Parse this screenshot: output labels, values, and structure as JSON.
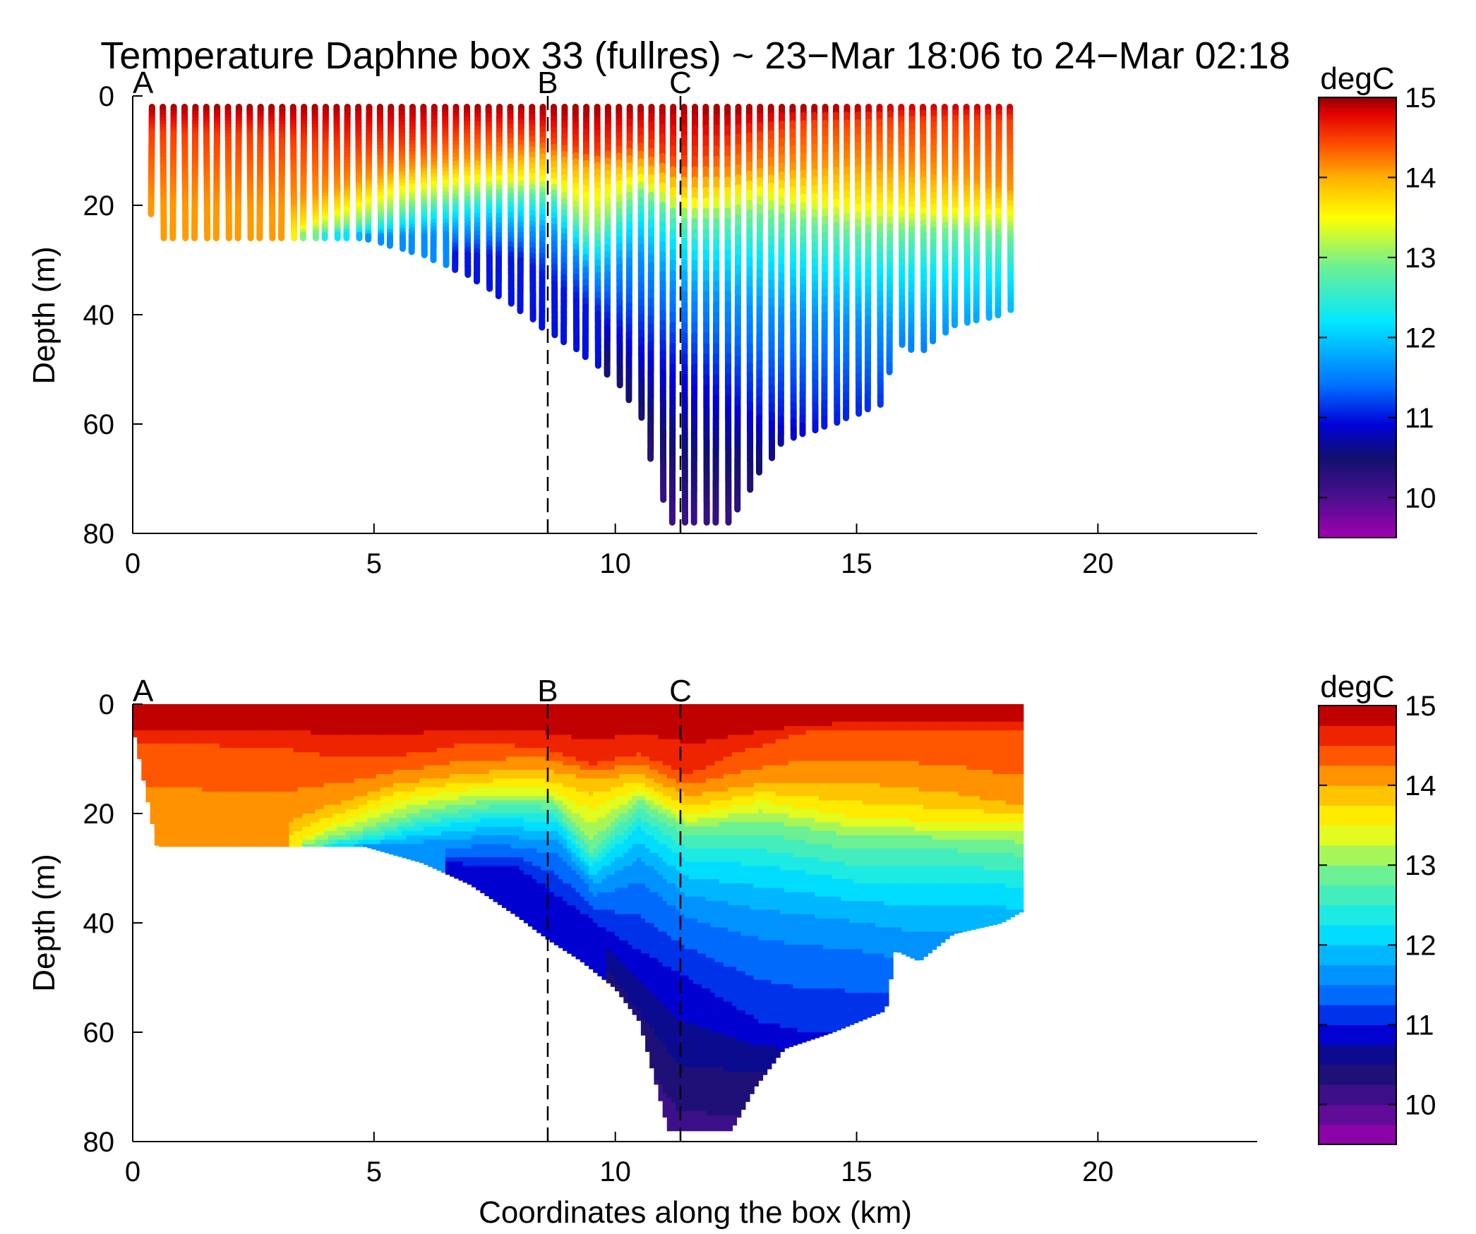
{
  "chart_data": {
    "type": "heatmap",
    "title": "Temperature Daphne box 33 (fullres) ~ 23−Mar 18:06 to 24−Mar 02:18",
    "xlabel": "Coordinates along the box (km)",
    "ylabel": "Depth (m)",
    "colorbar_label": "degC",
    "colormap": [
      "#a000b0",
      "#4a1090",
      "#10106e",
      "#0000d8",
      "#0070ff",
      "#00e8ff",
      "#70f090",
      "#ffff00",
      "#ffb000",
      "#ff5000",
      "#e00000",
      "#8c0000"
    ],
    "colorbar_values": [
      9.5,
      10.0,
      10.5,
      10.9,
      11.4,
      12.2,
      12.9,
      13.5,
      14.0,
      14.4,
      14.8,
      15.0
    ],
    "xlim": [
      0,
      23.3
    ],
    "ylim": [
      80,
      0
    ],
    "xticks": [
      "0",
      "5",
      "10",
      "15",
      "20"
    ],
    "yticks": [
      "0",
      "20",
      "40",
      "60",
      "80"
    ],
    "clim": [
      9.5,
      15
    ],
    "cticks": [
      "10",
      "11",
      "12",
      "13",
      "14",
      "15"
    ],
    "grid": false,
    "stations": [
      {
        "name": "A",
        "x": 0.0,
        "line": false
      },
      {
        "name": "B",
        "x": 8.6,
        "line": true
      },
      {
        "name": "C",
        "x": 11.35,
        "line": true
      }
    ],
    "panels": [
      {
        "name": "scatter_profiles",
        "style": "yo-yo profiles"
      },
      {
        "name": "contour_section",
        "style": "filled contours"
      }
    ],
    "bottom_depth": [
      [
        0.0,
        4
      ],
      [
        0.5,
        26
      ],
      [
        4.8,
        26
      ],
      [
        6.0,
        29
      ],
      [
        7.0,
        33
      ],
      [
        8.0,
        39
      ],
      [
        8.6,
        43
      ],
      [
        9.3,
        47
      ],
      [
        10.0,
        52
      ],
      [
        10.5,
        58
      ],
      [
        11.1,
        78
      ],
      [
        11.6,
        78
      ],
      [
        12.4,
        78
      ],
      [
        12.9,
        70
      ],
      [
        13.5,
        63
      ],
      [
        14.5,
        60
      ],
      [
        15.6,
        56
      ],
      [
        15.8,
        45
      ],
      [
        16.3,
        47
      ],
      [
        17.0,
        42
      ],
      [
        18.0,
        40
      ],
      [
        18.4,
        38
      ]
    ],
    "isotherms": [
      {
        "value": 14.9,
        "depth": [
          [
            0.0,
            3
          ],
          [
            3.0,
            3
          ],
          [
            5.0,
            3
          ],
          [
            8.0,
            3
          ],
          [
            9.5,
            4
          ],
          [
            10.5,
            3
          ],
          [
            12.0,
            4
          ],
          [
            14.0,
            3
          ],
          [
            16.0,
            2
          ],
          [
            18.4,
            2
          ]
        ]
      },
      {
        "value": 14.5,
        "depth": [
          [
            0.0,
            7
          ],
          [
            3.0,
            8
          ],
          [
            4.5,
            10
          ],
          [
            6.0,
            9
          ],
          [
            7.0,
            7
          ],
          [
            8.5,
            8
          ],
          [
            9.5,
            11
          ],
          [
            10.5,
            9
          ],
          [
            11.5,
            13
          ],
          [
            12.5,
            9
          ],
          [
            14.0,
            5
          ],
          [
            16.0,
            5
          ],
          [
            18.4,
            5
          ]
        ]
      },
      {
        "value": 14.1,
        "depth": [
          [
            0.0,
            20
          ],
          [
            3.0,
            21
          ],
          [
            4.0,
            18
          ],
          [
            5.5,
            14
          ],
          [
            7.0,
            12
          ],
          [
            8.5,
            11
          ],
          [
            9.5,
            13
          ],
          [
            10.5,
            12
          ],
          [
            11.5,
            16
          ],
          [
            13.0,
            14
          ],
          [
            15.0,
            13
          ],
          [
            17.0,
            15
          ],
          [
            18.4,
            18
          ]
        ]
      },
      {
        "value": 13.6,
        "depth": [
          [
            3.2,
            26
          ],
          [
            4.0,
            22
          ],
          [
            5.5,
            17
          ],
          [
            7.0,
            15
          ],
          [
            8.5,
            15
          ],
          [
            9.5,
            18
          ],
          [
            10.5,
            15
          ],
          [
            11.5,
            20
          ],
          [
            13.0,
            17
          ],
          [
            15.0,
            20
          ],
          [
            17.0,
            21
          ],
          [
            18.4,
            21
          ]
        ]
      },
      {
        "value": 12.9,
        "depth": [
          [
            3.5,
            26
          ],
          [
            4.5,
            24
          ],
          [
            6.0,
            20
          ],
          [
            7.5,
            18
          ],
          [
            8.7,
            18
          ],
          [
            9.5,
            26
          ],
          [
            10.5,
            18
          ],
          [
            11.5,
            23
          ],
          [
            13.0,
            22
          ],
          [
            15.0,
            25
          ],
          [
            17.0,
            25
          ],
          [
            18.4,
            26
          ]
        ]
      },
      {
        "value": 12.2,
        "depth": [
          [
            4.0,
            26
          ],
          [
            5.0,
            25
          ],
          [
            6.0,
            23
          ],
          [
            7.5,
            21
          ],
          [
            8.8,
            22
          ],
          [
            9.5,
            30
          ],
          [
            10.5,
            23
          ],
          [
            11.5,
            29
          ],
          [
            13.0,
            30
          ],
          [
            15.0,
            33
          ],
          [
            17.0,
            33
          ],
          [
            18.4,
            34
          ]
        ]
      },
      {
        "value": 11.6,
        "depth": [
          [
            4.6,
            26
          ],
          [
            6.0,
            26
          ],
          [
            7.5,
            25
          ],
          [
            8.8,
            26
          ],
          [
            9.6,
            34
          ],
          [
            10.5,
            30
          ],
          [
            11.5,
            37
          ],
          [
            13.0,
            40
          ],
          [
            15.0,
            42
          ],
          [
            16.0,
            44
          ]
        ]
      },
      {
        "value": 11.0,
        "depth": [
          [
            6.5,
            29
          ],
          [
            8.0,
            30
          ],
          [
            9.6,
            40
          ],
          [
            10.5,
            45
          ],
          [
            11.5,
            50
          ],
          [
            13.0,
            58
          ],
          [
            14.0,
            60
          ]
        ]
      },
      {
        "value": 10.5,
        "depth": [
          [
            9.8,
            48
          ],
          [
            10.8,
            60
          ],
          [
            11.3,
            66
          ],
          [
            12.5,
            67
          ]
        ]
      }
    ]
  }
}
